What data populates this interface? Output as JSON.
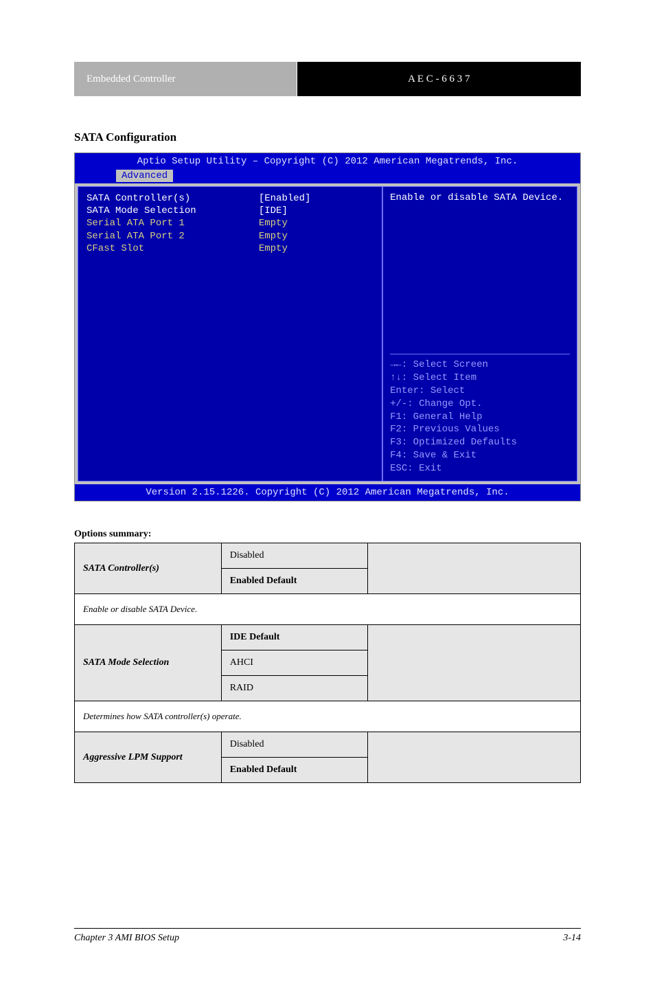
{
  "header": {
    "left": "Embedded Controller",
    "right": "A E C - 6 6 3 7"
  },
  "section_title": "SATA Configuration",
  "bios": {
    "top": "Aptio Setup Utility – Copyright (C) 2012 American Megatrends, Inc.",
    "tab": "Advanced",
    "rows": [
      {
        "label": "SATA Controller(s)",
        "value": "[Enabled]",
        "highlight": true
      },
      {
        "label": "SATA Mode Selection",
        "value": "[IDE]",
        "highlight": true
      },
      {
        "label": "",
        "value": ""
      },
      {
        "label": "Serial ATA Port 1",
        "value": "Empty"
      },
      {
        "label": "Serial ATA Port 2",
        "value": "Empty"
      },
      {
        "label": "CFast Slot",
        "value": "Empty"
      }
    ],
    "help_text": "Enable or disable SATA Device.",
    "hints": [
      "→←: Select Screen",
      "↑↓: Select Item",
      "Enter: Select",
      "+/-: Change Opt.",
      "F1: General Help",
      "F2: Previous Values",
      "F3: Optimized Defaults",
      "F4: Save & Exit",
      "ESC: Exit"
    ],
    "footer": "Version 2.15.1226. Copyright (C) 2012 American Megatrends, Inc."
  },
  "options": {
    "label": "Options summary:",
    "rows": [
      {
        "name": "SATA Controller(s)",
        "choices": [
          "Disabled",
          "Enabled"
        ],
        "default_index": 1,
        "desc": ""
      },
      {
        "note": "Enable or disable SATA Device."
      },
      {
        "name": "SATA Mode Selection",
        "choices": [
          "IDE",
          "AHCI",
          "RAID"
        ],
        "default_index": 0,
        "desc": ""
      },
      {
        "note": "Determines how SATA controller(s) operate."
      },
      {
        "name": "Aggressive LPM Support",
        "choices": [
          "Disabled",
          "Enabled"
        ],
        "default_index": 1,
        "desc": ""
      }
    ],
    "default_suffix": "Default"
  },
  "footer": {
    "left": "Chapter 3 AMI BIOS Setup",
    "right": "3-14"
  },
  "colors": {
    "bios_bg": "#0000aa",
    "bios_bar": "#0000cc",
    "bios_border": "#7070ff",
    "hint_color": "#9898ff",
    "table_fill": "#e6e6e6",
    "page_bg": "#ffffff",
    "header_gray": "#b0b0b0"
  }
}
